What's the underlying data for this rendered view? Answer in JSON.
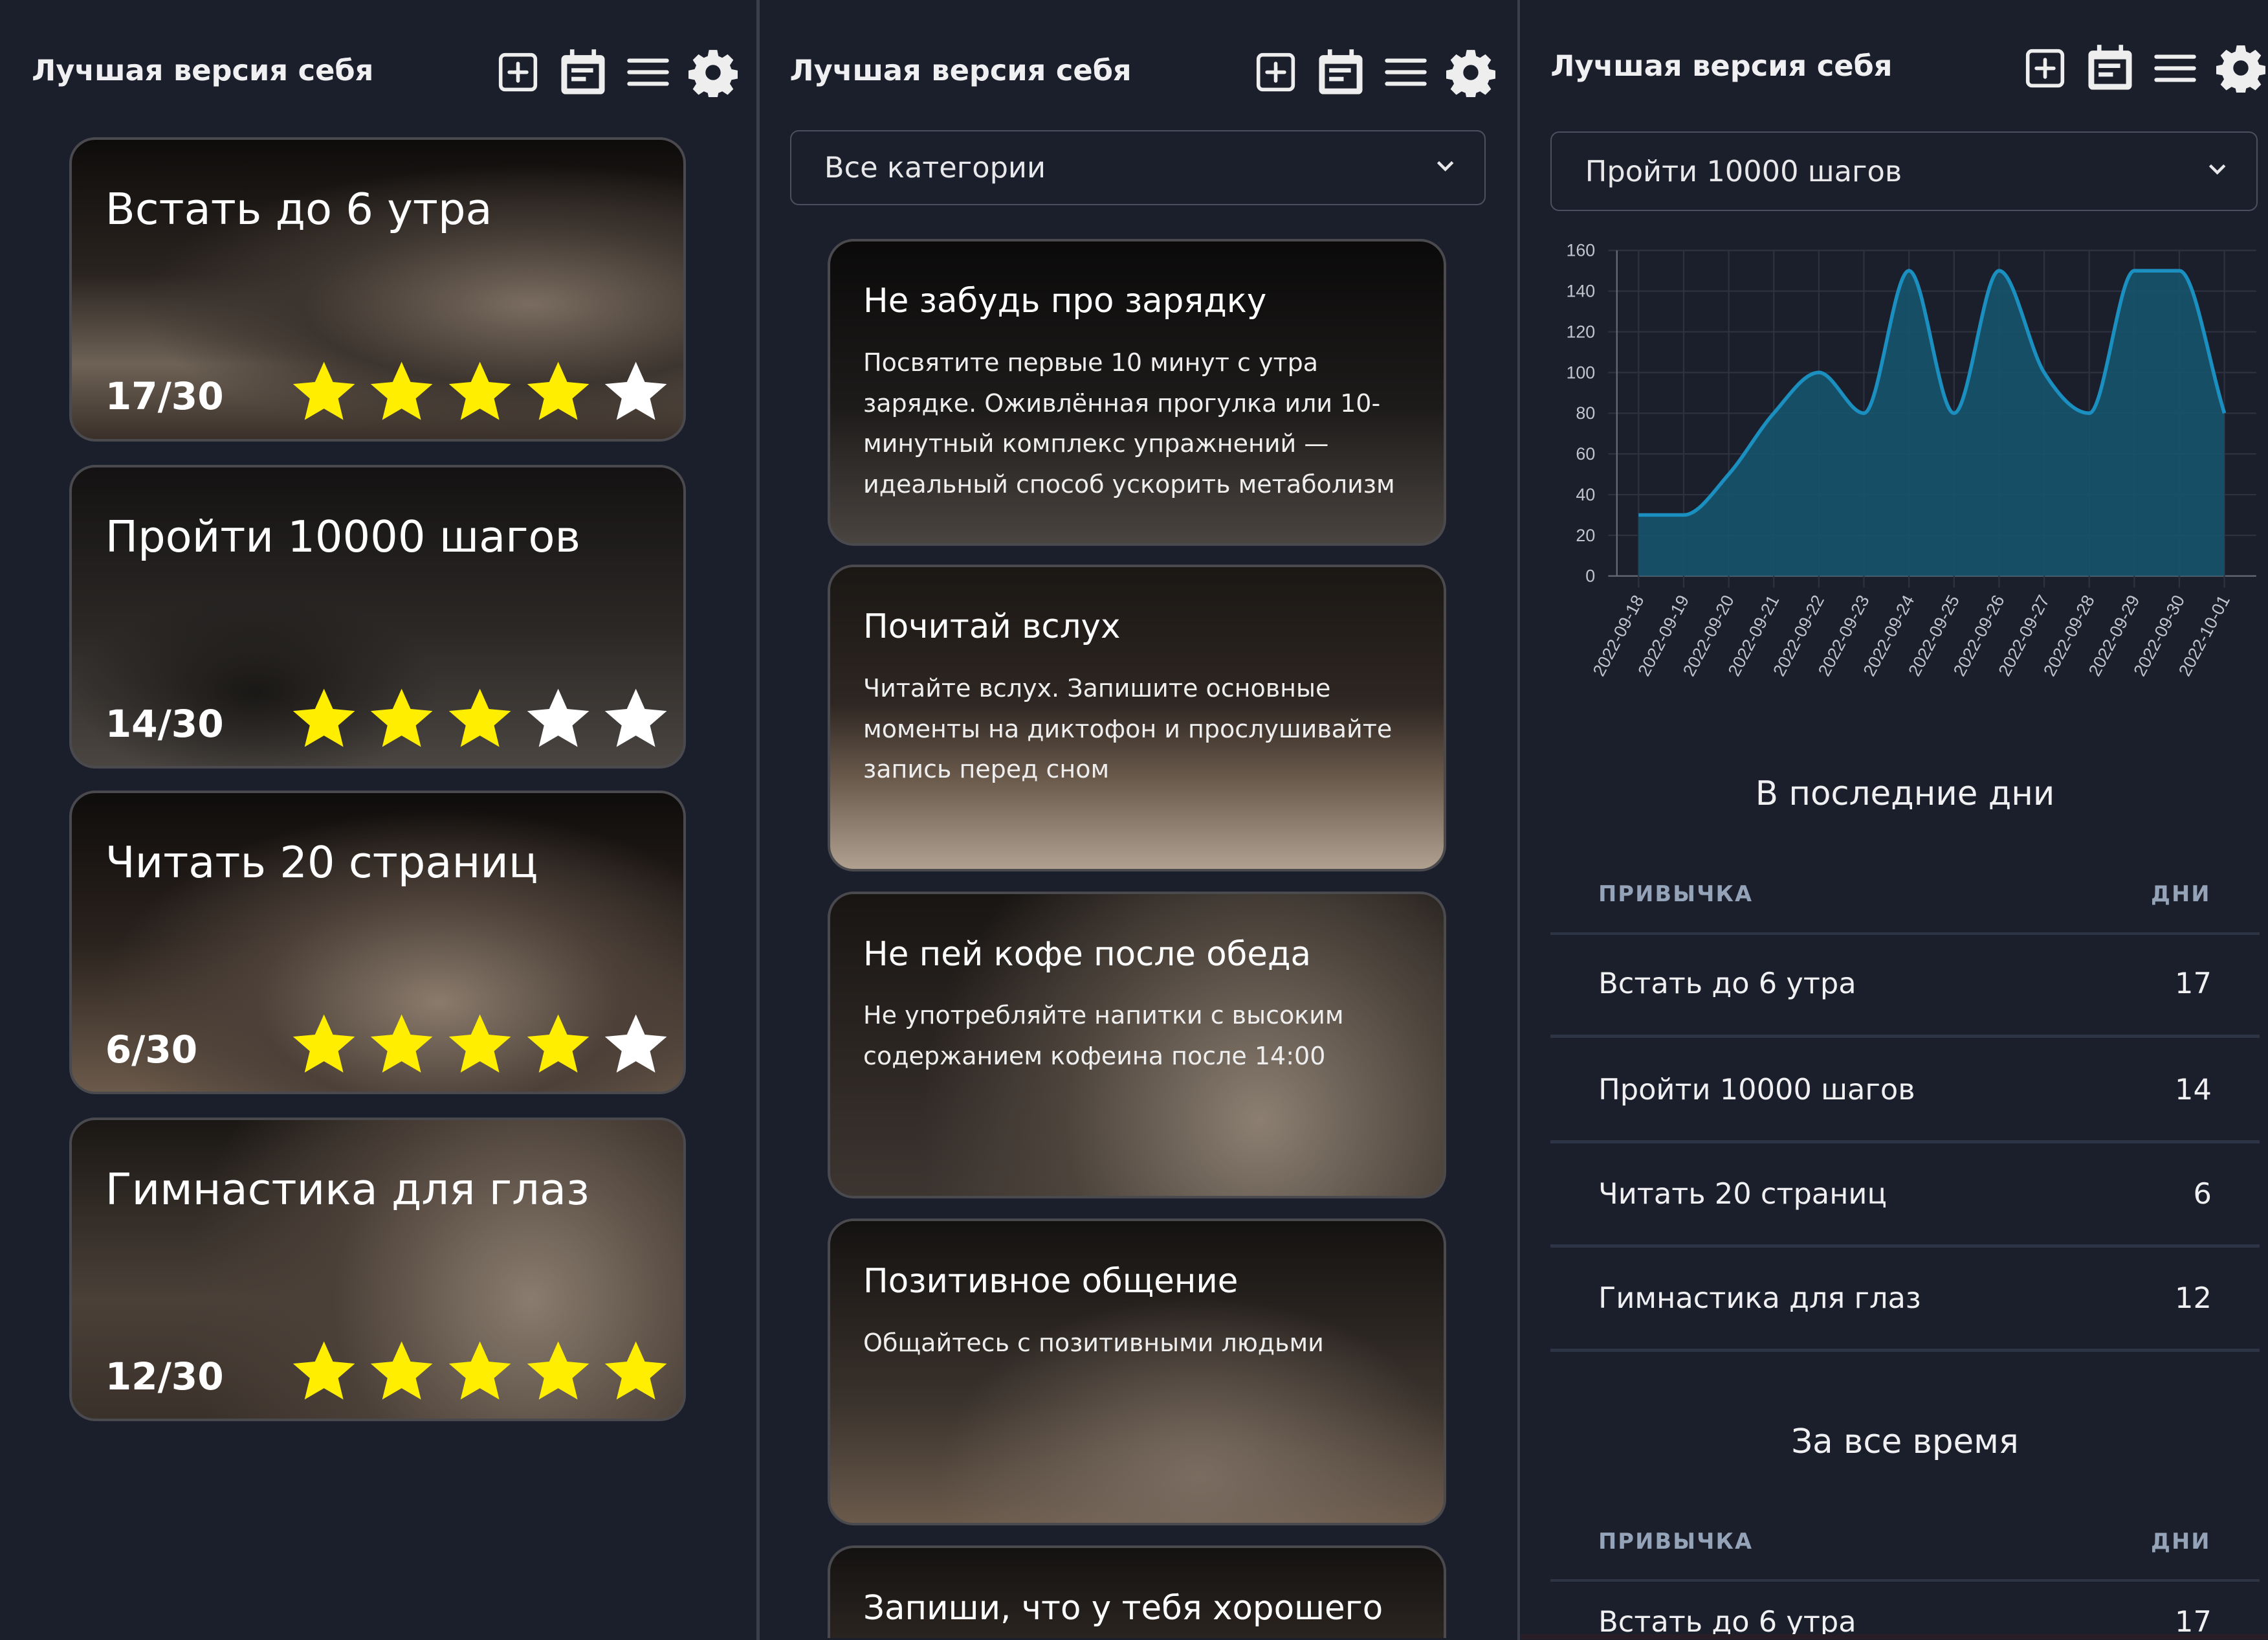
{
  "app_title": "Лучшая версия себя",
  "header_icons": [
    "add-square-icon",
    "calendar-icon",
    "menu-icon",
    "gear-icon"
  ],
  "colors": {
    "background": "#1b1f2b",
    "star_active": "#ffee00",
    "star_inactive": "#ffffff",
    "chart_line": "#1a8fc0",
    "chart_fill": "#16536d",
    "table_header": "#94a3b8"
  },
  "habits": [
    {
      "title": "Встать до 6 утра",
      "progress": "17/30",
      "stars": 4,
      "max_stars": 5
    },
    {
      "title": "Пройти 10000 шагов",
      "progress": "14/30",
      "stars": 3,
      "max_stars": 5
    },
    {
      "title": "Читать 20 страниц",
      "progress": "6/30",
      "stars": 4,
      "max_stars": 5
    },
    {
      "title": "Гимнастика для глаз",
      "progress": "12/30",
      "stars": 5,
      "max_stars": 5
    }
  ],
  "tips": {
    "category_select": "Все категории",
    "items": [
      {
        "title": "Не забудь про зарядку",
        "desc": "Посвятите первые 10 минут с утра зарядке. Оживлённая прогулка или 10-минутный комплекс упражнений — идеальный способ ускорить метаболизм"
      },
      {
        "title": "Почитай вслух",
        "desc": "Читайте вслух. Запишите основные моменты на диктофон и прослушивайте запись перед сном"
      },
      {
        "title": "Не пей кофе после обеда",
        "desc": "Не употребляйте напитки с высоким содержанием кофеина после 14:00"
      },
      {
        "title": "Позитивное общение",
        "desc": "Общайтесь с позитивными людьми"
      },
      {
        "title": "Запиши, что у тебя хорошего",
        "desc": ""
      }
    ]
  },
  "stats": {
    "habit_select": "Пройти 10000 шагов",
    "recent_title": "В последние дни",
    "alltime_title": "За все время",
    "col_habit": "ПРИВЫЧКА",
    "col_days": "ДНИ",
    "recent_rows": [
      {
        "habit": "Встать до 6 утра",
        "days": "17"
      },
      {
        "habit": "Пройти 10000 шагов",
        "days": "14"
      },
      {
        "habit": "Читать 20 страниц",
        "days": "6"
      },
      {
        "habit": "Гимнастика для глаз",
        "days": "12"
      }
    ],
    "alltime_rows": [
      {
        "habit": "Встать до 6 утра",
        "days": "17"
      }
    ]
  },
  "chart_data": {
    "type": "area",
    "categories": [
      "2022-09-18",
      "2022-09-19",
      "2022-09-20",
      "2022-09-21",
      "2022-09-22",
      "2022-09-23",
      "2022-09-24",
      "2022-09-25",
      "2022-09-26",
      "2022-09-27",
      "2022-09-28",
      "2022-09-29",
      "2022-09-30",
      "2022-10-01"
    ],
    "values": [
      30,
      30,
      50,
      80,
      100,
      80,
      150,
      80,
      150,
      100,
      80,
      150,
      150,
      80
    ],
    "ylim": [
      0,
      160
    ],
    "yticks": [
      "0",
      "20",
      "40",
      "60",
      "80",
      "100",
      "120",
      "140",
      "160"
    ],
    "grid": true,
    "legend": "none"
  }
}
